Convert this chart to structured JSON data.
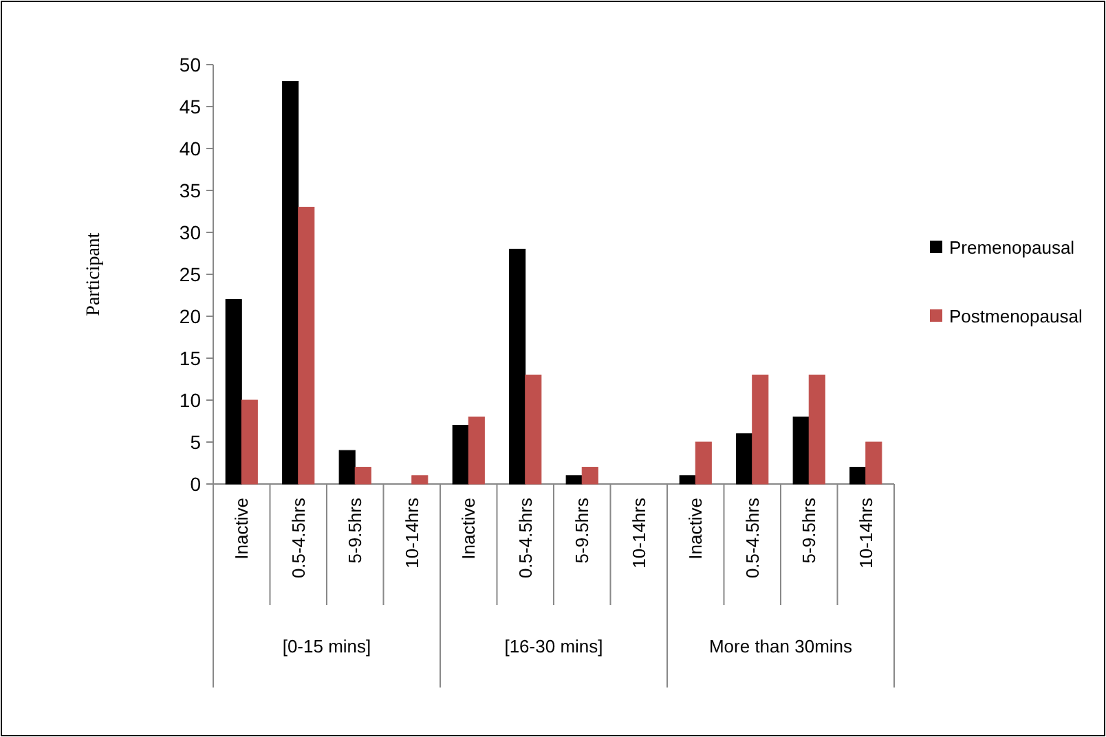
{
  "chart_data": {
    "type": "bar",
    "ylabel": "Participant",
    "categories": [
      "Inactive",
      "0.5-4.5hrs",
      "5-9.5hrs",
      "10-14hrs",
      "Inactive",
      "0.5-4.5hrs",
      "5-9.5hrs",
      "10-14hrs",
      "Inactive",
      "0.5-4.5hrs",
      "5-9.5hrs",
      "10-14hrs"
    ],
    "series": [
      {
        "name": "Premenopausal",
        "color": "#000000",
        "values": [
          22,
          48,
          4,
          0,
          7,
          28,
          1,
          0,
          1,
          6,
          8,
          2
        ]
      },
      {
        "name": "Postmenopausal",
        "color": "#c0504d",
        "values": [
          10,
          33,
          2,
          1,
          8,
          13,
          2,
          0,
          5,
          13,
          13,
          5
        ]
      }
    ],
    "ylim": [
      0,
      50
    ],
    "yticks": [
      0,
      5,
      10,
      15,
      20,
      25,
      30,
      35,
      40,
      45,
      50
    ],
    "annotations": [
      "[0-15 mins]",
      "[16-30 mins]",
      "More than 30mins"
    ],
    "grid": false,
    "legend": "right"
  }
}
